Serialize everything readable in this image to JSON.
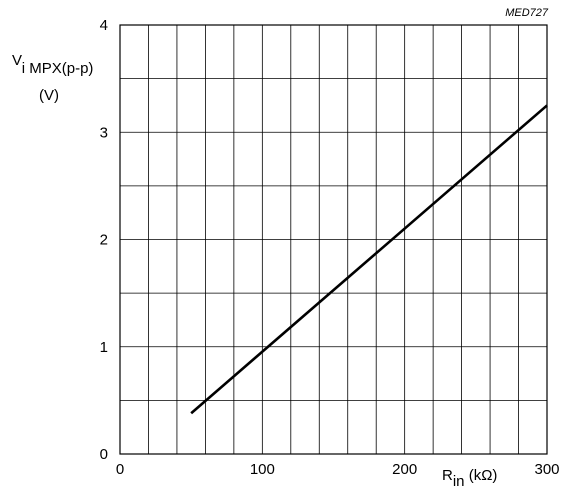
{
  "chart_data": {
    "type": "line",
    "figure_code": "MED727",
    "xlabel": {
      "main": "R",
      "sub": "in",
      "unit": " (kΩ)"
    },
    "ylabel": {
      "main": "V",
      "sub": "i MPX(p-p)",
      "unit": "(V)"
    },
    "xlim": [
      0,
      300
    ],
    "ylim": [
      0,
      4
    ],
    "x_ticks": [
      0,
      100,
      200,
      300
    ],
    "y_ticks": [
      0,
      1,
      2,
      3,
      4
    ],
    "x_tick_labels": [
      "0",
      "100",
      "200",
      "300"
    ],
    "y_tick_labels": [
      "0",
      "1",
      "2",
      "3",
      "4"
    ],
    "x_grid_step": 20,
    "y_grid_step": 0.5,
    "grid": true,
    "series": [
      {
        "x": [
          50,
          300
        ],
        "y": [
          0.38,
          3.25
        ],
        "color": "#000000"
      }
    ]
  }
}
